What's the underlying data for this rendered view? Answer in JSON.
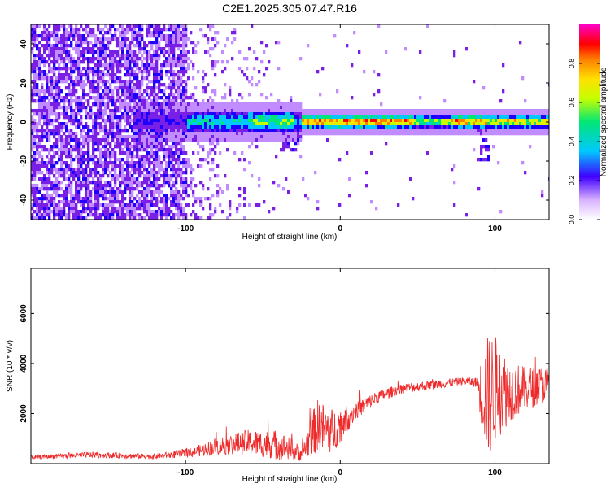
{
  "title": "C2E1.2025.305.07.47.R16",
  "colors": {
    "axis": "#000000",
    "snr_line": "#ee2a2a",
    "colormap": [
      "#f2e6ff",
      "#c08cff",
      "#7a1fe6",
      "#1f00ff",
      "#00c8ff",
      "#00e676",
      "#c6ff00",
      "#ffe000",
      "#ff8000",
      "#ff0000",
      "#ff00c8"
    ]
  },
  "chart_data": [
    {
      "type": "heatmap",
      "name": "spectrogram",
      "xlabel": "Height of straight line (km)",
      "ylabel": "Frequency (Hz)",
      "xlim": [
        -200,
        135
      ],
      "ylim": [
        -50,
        50
      ],
      "xticks": [
        -100,
        0,
        100
      ],
      "yticks": [
        -40,
        -20,
        0,
        20,
        40
      ],
      "colorbar": {
        "label": "Normalized spectral amplitude",
        "range": [
          0,
          1
        ],
        "ticks": [
          0.0,
          0.2,
          0.4,
          0.6,
          0.8
        ]
      },
      "description": "Broadband purple noise for heights below about -100 km; concentrated signal band near 0 Hz from about -135 km to 135 km, strongest (red) between -25 km and 45 km and around 75-95 km."
    },
    {
      "type": "line",
      "name": "snr",
      "xlabel": "Height of straight line (km)",
      "ylabel": "SNR (10 * v/v)",
      "xlim": [
        -200,
        135
      ],
      "ylim": [
        0,
        7800
      ],
      "xticks": [
        -100,
        0,
        100
      ],
      "yticks": [
        2000,
        4000,
        6000
      ],
      "envelope": {
        "x": [
          -200,
          -160,
          -120,
          -95,
          -80,
          -60,
          -40,
          -25,
          -15,
          -5,
          10,
          25,
          40,
          60,
          80,
          88,
          92,
          96,
          100,
          110,
          120,
          135
        ],
        "mean": [
          250,
          350,
          280,
          450,
          700,
          850,
          750,
          400,
          1500,
          1300,
          2100,
          2700,
          3000,
          3150,
          3300,
          3250,
          2800,
          2700,
          3000,
          2900,
          3000,
          3200
        ],
        "amp": [
          80,
          120,
          100,
          200,
          350,
          500,
          600,
          300,
          1100,
          900,
          350,
          250,
          200,
          180,
          150,
          200,
          1600,
          2600,
          2200,
          1200,
          900,
          700
        ]
      }
    }
  ]
}
